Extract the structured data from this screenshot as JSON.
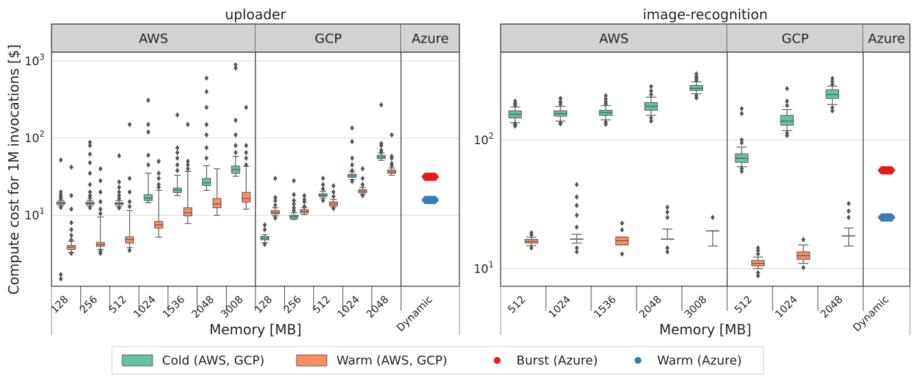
{
  "colors": {
    "cold": "#66c2a5",
    "warm": "#fc8d62",
    "burst_azure": "#e41a1c",
    "warm_azure": "#377eb8",
    "header_bg": "#d3d3d3",
    "grid": "#d9d9d9",
    "whisker": "#555555"
  },
  "legend": {
    "placement": "bottom",
    "items": [
      {
        "label": "Cold (AWS, GCP)",
        "type": "patch",
        "color_key": "cold"
      },
      {
        "label": "Warm (AWS, GCP)",
        "type": "patch",
        "color_key": "warm"
      },
      {
        "label": "Burst (Azure)",
        "type": "dot",
        "color_key": "burst_azure"
      },
      {
        "label": "Warm (Azure)",
        "type": "dot",
        "color_key": "warm_azure"
      }
    ]
  },
  "chart_data": [
    {
      "type": "box",
      "title": "uploader",
      "ylabel": "Compute cost for 1M invocations [$]",
      "xlabel": "Memory [MB]",
      "yscale": "log",
      "ylim": [
        1.2,
        1300
      ],
      "grid": true,
      "yticks": [
        {
          "value": 10,
          "base": "10",
          "exp": "1"
        },
        {
          "value": 100,
          "base": "10",
          "exp": "2"
        },
        {
          "value": 1000,
          "base": "10",
          "exp": "3"
        }
      ],
      "groups": [
        {
          "provider": "AWS",
          "categories": [
            "128",
            "256",
            "512",
            "1024",
            "1536",
            "2048",
            "3008"
          ],
          "cold": [
            {
              "q1": 13.9,
              "med": 14.3,
              "q3": 14.9,
              "wlo": 13.3,
              "whi": 15.6,
              "out": [
                1.5,
                1.7,
                12.6,
                16.5,
                17.5,
                18.5,
                20,
                52
              ]
            },
            {
              "q1": 13.8,
              "med": 14.2,
              "q3": 14.8,
              "wlo": 13.2,
              "whi": 15.6,
              "out": [
                12.5,
                16.8,
                18,
                20,
                25,
                35,
                48,
                62,
                80,
                88
              ]
            },
            {
              "q1": 13.7,
              "med": 14.1,
              "q3": 14.6,
              "wlo": 13,
              "whi": 15.5,
              "out": [
                12.4,
                16.5,
                18,
                20,
                23,
                27,
                59
              ]
            },
            {
              "q1": 15.5,
              "med": 16.7,
              "q3": 18.5,
              "wlo": 14.5,
              "whi": 35,
              "out": [
                45,
                60,
                120,
                150,
                310
              ]
            },
            {
              "q1": 19.7,
              "med": 21,
              "q3": 22.5,
              "wlo": 18,
              "whi": 33,
              "out": [
                38,
                45,
                55,
                65,
                75,
                200
              ]
            },
            {
              "q1": 24.3,
              "med": 26.3,
              "q3": 30,
              "wlo": 21,
              "whi": 44,
              "out": [
                55,
                75,
                110,
                150,
                250,
                400,
                600
              ]
            },
            {
              "q1": 35,
              "med": 39,
              "q3": 43.5,
              "wlo": 32,
              "whi": 58,
              "out": [
                65,
                80,
                110,
                170,
                810,
                890
              ]
            }
          ],
          "warm": [
            {
              "q1": 3.6,
              "med": 3.85,
              "q3": 4.05,
              "wlo": 3.3,
              "whi": 4.6,
              "out": [
                3.2,
                4.8,
                5.5,
                6.5,
                8,
                12,
                18,
                42
              ]
            },
            {
              "q1": 3.95,
              "med": 4.15,
              "q3": 4.45,
              "wlo": 3.6,
              "whi": 9.5,
              "out": [
                3.2,
                3.4,
                10.5,
                12,
                15,
                20,
                28,
                40
              ]
            },
            {
              "q1": 4.35,
              "med": 4.85,
              "q3": 5.25,
              "wlo": 3.8,
              "whi": 11.5,
              "out": [
                3.5,
                13,
                15,
                20,
                30,
                150
              ]
            },
            {
              "q1": 6.8,
              "med": 7.5,
              "q3": 8.3,
              "wlo": 5.2,
              "whi": 21,
              "out": [
                23,
                25,
                30,
                35,
                50
              ]
            },
            {
              "q1": 9.8,
              "med": 10.8,
              "q3": 12.5,
              "wlo": 7.8,
              "whi": 37,
              "out": [
                40,
                45,
                50,
                150
              ]
            },
            {
              "q1": 12.5,
              "med": 14,
              "q3": 16.5,
              "wlo": 10,
              "whi": 40,
              "out": []
            },
            {
              "q1": 14.8,
              "med": 16.5,
              "q3": 19.8,
              "wlo": 12,
              "whi": 43,
              "out": [
                45,
                55,
                65,
                80,
                250
              ]
            }
          ]
        },
        {
          "provider": "GCP",
          "categories": [
            "128",
            "256",
            "512",
            "1024",
            "2048"
          ],
          "cold": [
            {
              "q1": 4.8,
              "med": 5.05,
              "q3": 5.3,
              "wlo": 4.4,
              "whi": 5.6,
              "out": [
                4.2,
                6.5,
                7.5
              ]
            },
            {
              "q1": 9.1,
              "med": 9.6,
              "q3": 10,
              "wlo": 8.8,
              "whi": 10.8,
              "out": [
                11.5,
                12.5,
                14,
                15.5,
                18.5,
                28
              ]
            },
            {
              "q1": 17.5,
              "med": 18.2,
              "q3": 19,
              "wlo": 16.6,
              "whi": 20.5,
              "out": [
                15.5,
                22,
                25,
                30
              ]
            },
            {
              "q1": 31,
              "med": 32.5,
              "q3": 34,
              "wlo": 29,
              "whi": 36.5,
              "out": [
                27.5,
                38,
                45,
                55,
                90,
                135
              ]
            },
            {
              "q1": 54.5,
              "med": 57,
              "q3": 60,
              "wlo": 51.5,
              "whi": 64,
              "out": [
                66,
                70,
                80,
                85,
                270
              ]
            }
          ],
          "warm": [
            {
              "q1": 10.4,
              "med": 10.9,
              "q3": 11.5,
              "wlo": 9.8,
              "whi": 12.5,
              "out": [
                9.2,
                13.5,
                15.5,
                17,
                30
              ]
            },
            {
              "q1": 10.7,
              "med": 11.2,
              "q3": 11.8,
              "wlo": 10.2,
              "whi": 12.5,
              "out": [
                13,
                15,
                16,
                18
              ]
            },
            {
              "q1": 13.3,
              "med": 14,
              "q3": 14.9,
              "wlo": 12.8,
              "whi": 16,
              "out": [
                12.2,
                17.5,
                20,
                24
              ]
            },
            {
              "q1": 19.6,
              "med": 20.5,
              "q3": 21.5,
              "wlo": 18.7,
              "whi": 23,
              "out": [
                18,
                25,
                30,
                40
              ]
            },
            {
              "q1": 35,
              "med": 36.5,
              "q3": 38.5,
              "wlo": 33,
              "whi": 41,
              "out": [
                44,
                47,
                55,
                58,
                110
              ]
            }
          ]
        },
        {
          "provider": "Azure",
          "categories": [
            "Dynamic"
          ],
          "burst": [
            31.5
          ],
          "warm_points": [
            15.8
          ]
        }
      ]
    },
    {
      "type": "box",
      "title": "image-recognition",
      "ylabel": "",
      "xlabel": "Memory [MB]",
      "yscale": "log",
      "ylim": [
        7.3,
        480
      ],
      "grid": true,
      "yticks": [
        {
          "value": 10,
          "base": "10",
          "exp": "1"
        },
        {
          "value": 100,
          "base": "10",
          "exp": "2"
        }
      ],
      "groups": [
        {
          "provider": "AWS",
          "categories": [
            "512",
            "1024",
            "1536",
            "2048",
            "3008"
          ],
          "cold": [
            {
              "q1": 148,
              "med": 158,
              "q3": 168,
              "wlo": 136,
              "whi": 180,
              "out": [
                128,
                131,
                134,
                186,
                192,
                200
              ]
            },
            {
              "q1": 153,
              "med": 160,
              "q3": 168,
              "wlo": 140,
              "whi": 182,
              "out": [
                133,
                136,
                190,
                198,
                210
              ]
            },
            {
              "q1": 155,
              "med": 163,
              "q3": 170,
              "wlo": 143,
              "whi": 185,
              "out": [
                132,
                137,
                190,
                198,
                208,
                220
              ]
            },
            {
              "q1": 170,
              "med": 182,
              "q3": 195,
              "wlo": 155,
              "whi": 215,
              "out": [
                140,
                148,
                225,
                240,
                260
              ]
            },
            {
              "q1": 242,
              "med": 252,
              "q3": 265,
              "wlo": 228,
              "whi": 282,
              "out": [
                212,
                220,
                290,
                300,
                310,
                325
              ]
            }
          ],
          "warm": [
            {
              "q1": 15.8,
              "med": 16.3,
              "q3": 16.9,
              "wlo": 15.1,
              "whi": 17.6,
              "out": [
                14.5,
                18.3,
                19
              ]
            },
            {
              "q1": 17,
              "med": 17,
              "q3": 17,
              "wlo": 15.8,
              "whi": 18.5,
              "out": [
                13.5,
                14.5,
                21,
                26,
                31,
                36,
                45
              ]
            },
            {
              "q1": 15.3,
              "med": 16.5,
              "q3": 17.6,
              "wlo": 15.3,
              "whi": 17.6,
              "out": [
                13,
                20,
                22.5
              ]
            },
            {
              "q1": 17,
              "med": 17,
              "q3": 17,
              "wlo": 17,
              "whi": 20.3,
              "out": [
                13.5,
                14.5,
                25,
                27.5,
                30
              ]
            },
            {
              "q1": 19.7,
              "med": 19.7,
              "q3": 19.7,
              "wlo": 15,
              "whi": 19.7,
              "out": [
                25
              ]
            }
          ]
        },
        {
          "provider": "GCP",
          "categories": [
            "512",
            "1024",
            "2048"
          ],
          "cold": [
            {
              "q1": 67,
              "med": 72,
              "q3": 78,
              "wlo": 62,
              "whi": 88,
              "out": [
                57,
                60,
                95,
                100,
                160,
                175
              ]
            },
            {
              "q1": 130,
              "med": 140,
              "q3": 155,
              "wlo": 118,
              "whi": 172,
              "out": [
                108,
                113,
                185,
                200,
                250
              ]
            },
            {
              "q1": 210,
              "med": 225,
              "q3": 245,
              "wlo": 188,
              "whi": 262,
              "out": [
                168,
                178,
                270,
                285,
                300
              ]
            }
          ],
          "warm": [
            {
              "q1": 10.5,
              "med": 11,
              "q3": 11.6,
              "wlo": 10,
              "whi": 12.3,
              "out": [
                8.8,
                9.3,
                13,
                13.8,
                14.5
              ]
            },
            {
              "q1": 11.8,
              "med": 12.6,
              "q3": 13.5,
              "wlo": 11,
              "whi": 15.3,
              "out": [
                10.2,
                16.8
              ]
            },
            {
              "q1": 18,
              "med": 18,
              "q3": 18,
              "wlo": 15,
              "whi": 20.7,
              "out": [
                25,
                28,
                32
              ]
            }
          ]
        },
        {
          "provider": "Azure",
          "categories": [
            "Dynamic"
          ],
          "burst": [
            58
          ],
          "warm_points": [
            25
          ]
        }
      ]
    }
  ]
}
